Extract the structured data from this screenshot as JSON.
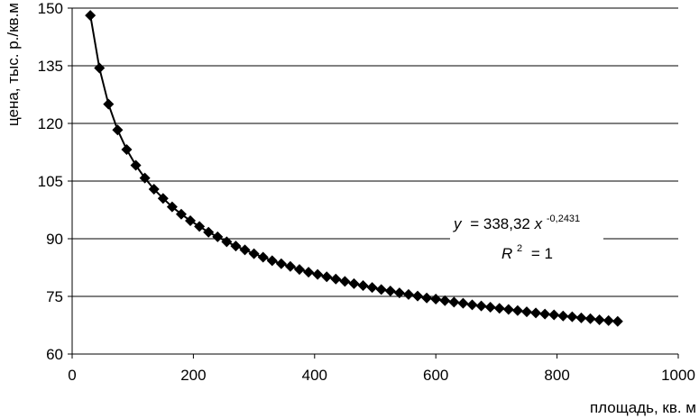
{
  "chart_data": {
    "type": "scatter",
    "title": "",
    "xlabel": "площадь, кв. м",
    "ylabel": "цена, тыс. р./кв.м",
    "xlim": [
      0,
      1000
    ],
    "ylim": [
      60,
      150
    ],
    "x_ticks": [
      "0",
      "200",
      "400",
      "600",
      "800",
      "1000"
    ],
    "y_ticks": [
      "60",
      "75",
      "90",
      "105",
      "120",
      "135",
      "150"
    ],
    "grid": "horizontal",
    "marker": "diamond",
    "series": [
      {
        "x": [
          30,
          45,
          60,
          75,
          90,
          105,
          120,
          135,
          150,
          165,
          180,
          195,
          210,
          225,
          240,
          255,
          270,
          285,
          300,
          315,
          330,
          345,
          360,
          375,
          390,
          405,
          420,
          435,
          450,
          465,
          480,
          495,
          510,
          525,
          540,
          555,
          570,
          585,
          600,
          615,
          630,
          645,
          660,
          675,
          690,
          705,
          720,
          735,
          750,
          765,
          780,
          795,
          810,
          825,
          840,
          855,
          870,
          885,
          900
        ],
        "y": [
          148.1,
          134.4,
          125.0,
          118.3,
          113.2,
          109.1,
          105.8,
          102.9,
          100.5,
          98.3,
          96.4,
          94.7,
          93.2,
          91.7,
          90.5,
          89.2,
          88.1,
          87.1,
          86.1,
          85.2,
          84.3,
          83.5,
          82.8,
          82.0,
          81.3,
          80.7,
          80.1,
          79.5,
          78.9,
          78.3,
          77.8,
          77.3,
          76.8,
          76.4,
          75.9,
          75.5,
          75.1,
          74.6,
          74.3,
          73.9,
          73.5,
          73.2,
          72.8,
          72.5,
          72.2,
          71.9,
          71.6,
          71.3,
          71.0,
          70.7,
          70.4,
          70.2,
          69.9,
          69.7,
          69.4,
          69.2,
          68.9,
          68.7,
          68.5
        ]
      }
    ],
    "annotation": {
      "y_label": "y",
      "equation": "= 338,32",
      "x_label": "x",
      "exponent": "-0,2431",
      "r2_label": "R",
      "r2_power": "2",
      "r2_value": "= 1"
    }
  }
}
